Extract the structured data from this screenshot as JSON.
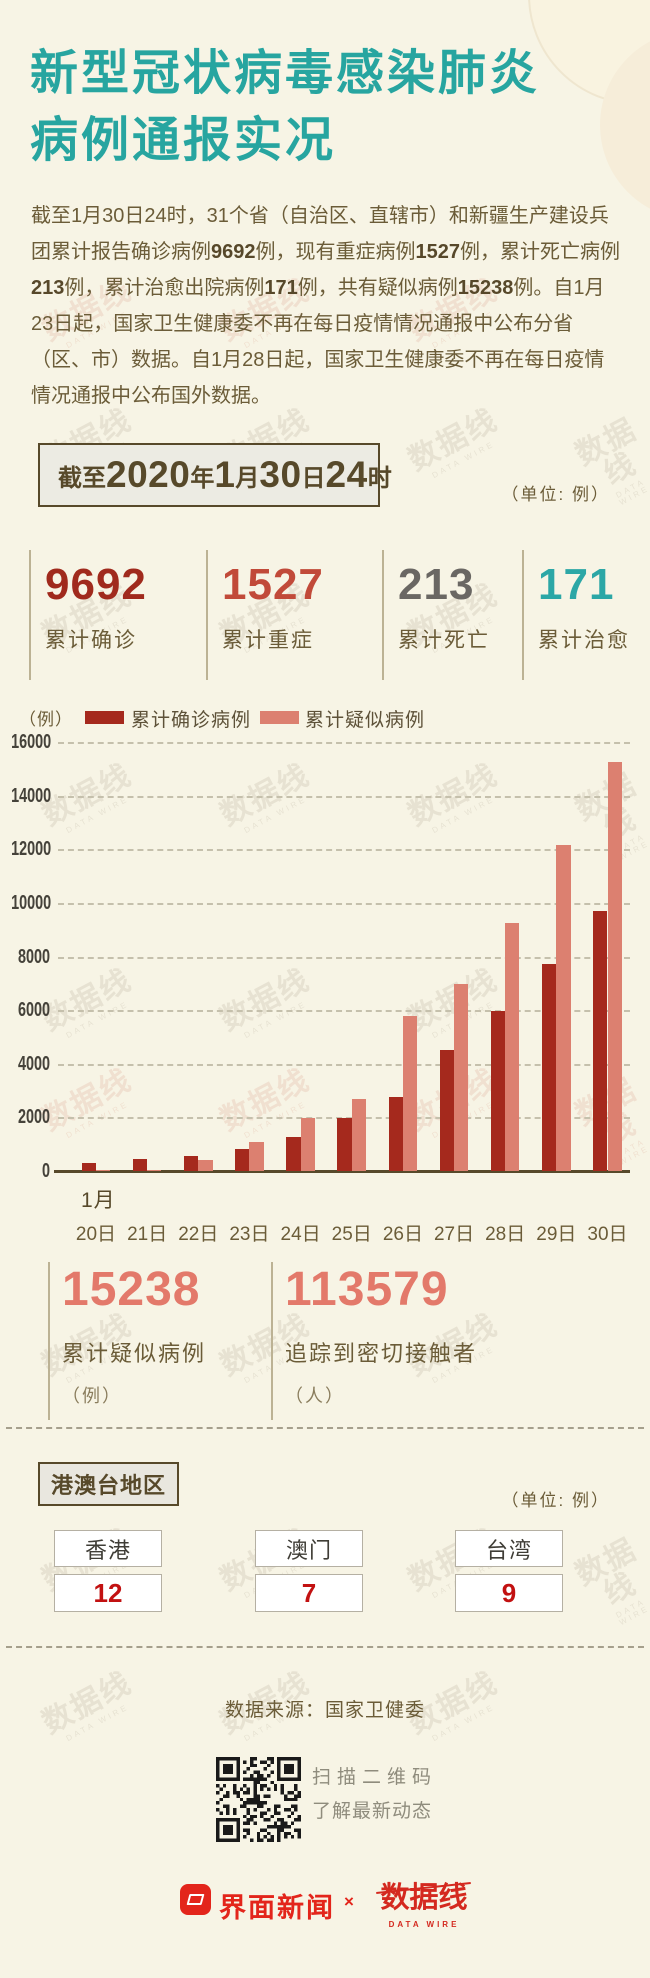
{
  "header": {
    "title_line1": "新型冠状病毒感染肺炎",
    "title_line2": "病例通报实况",
    "title_color": "#27a5a0"
  },
  "intro": {
    "segments": [
      {
        "text": "截至1月30日24时，31个省（自治区、直辖市）和新疆生产建设兵团累计报告确诊病例",
        "bold": false
      },
      {
        "text": "9692",
        "bold": true
      },
      {
        "text": "例，现有重症病例",
        "bold": false
      },
      {
        "text": "1527",
        "bold": true
      },
      {
        "text": "例，累计死亡病例",
        "bold": false
      },
      {
        "text": "213",
        "bold": true
      },
      {
        "text": "例，累计治愈出院病例",
        "bold": false
      },
      {
        "text": "171",
        "bold": true
      },
      {
        "text": "例，共有疑似病例",
        "bold": false
      },
      {
        "text": "15238",
        "bold": true
      },
      {
        "text": "例。自1月23日起，国家卫生健康委不再在每日疫情情况通报中公布分省（区、市）数据。自1月28日起，国家卫生健康委不再在每日疫情情况通报中公布国外数据。",
        "bold": false
      }
    ]
  },
  "banner": {
    "segments": [
      {
        "text": "截至",
        "size": "small"
      },
      {
        "text": "2020",
        "size": "big"
      },
      {
        "text": "年",
        "size": "small"
      },
      {
        "text": "1",
        "size": "big"
      },
      {
        "text": "月",
        "size": "small"
      },
      {
        "text": "30",
        "size": "big"
      },
      {
        "text": "日",
        "size": "small"
      },
      {
        "text": "24",
        "size": "big"
      },
      {
        "text": "时",
        "size": "small"
      }
    ]
  },
  "unit_note_top": "（单位: 例）",
  "summary_stats": [
    {
      "value": "9692",
      "label": "累计确诊",
      "color": "#a02a1d"
    },
    {
      "value": "1527",
      "label": "累计重症",
      "color": "#c14a39"
    },
    {
      "value": "213",
      "label": "累计死亡",
      "color": "#6a6763"
    },
    {
      "value": "171",
      "label": "累计治愈",
      "color": "#2ca7a6"
    }
  ],
  "chart_data": {
    "type": "bar",
    "unit_label": "（例）",
    "x_axis_prefix": "1月",
    "categories": [
      "20日",
      "21日",
      "22日",
      "23日",
      "24日",
      "25日",
      "26日",
      "27日",
      "28日",
      "29日",
      "30日"
    ],
    "series": [
      {
        "name": "累计确诊病例",
        "color": "#a5291d",
        "values": [
          291,
          440,
          571,
          830,
          1287,
          1975,
          2744,
          4515,
          5974,
          7711,
          9692
        ]
      },
      {
        "name": "累计疑似病例",
        "color": "#dc8070",
        "values": [
          54,
          37,
          393,
          1072,
          1965,
          2684,
          5794,
          6973,
          9239,
          12167,
          15238
        ]
      }
    ],
    "ylim": [
      0,
      16000
    ],
    "y_tick_step": 2000,
    "grid": "dashed-horizontal",
    "legend_position": "top-left"
  },
  "secondary_stats": [
    {
      "value": "15238",
      "label": "累计疑似病例",
      "unit": "（例）",
      "color": "#e3796a"
    },
    {
      "value": "113579",
      "label": "追踪到密切接触者",
      "unit": "（人）",
      "color": "#e3796a"
    }
  ],
  "hmt_section": {
    "title": "港澳台地区",
    "unit_note": "（单位: 例）",
    "value_color": "#c21111",
    "regions": [
      {
        "name": "香港",
        "value": "12"
      },
      {
        "name": "澳门",
        "value": "7"
      },
      {
        "name": "台湾",
        "value": "9"
      }
    ]
  },
  "footer": {
    "source": "数据来源：国家卫健委",
    "qr_caption_line1": "扫描二维码",
    "qr_caption_line2": "了解最新动态",
    "brand_left": "界面新闻",
    "cross": "×",
    "brand_right": "数据线",
    "brand_right_sub": "DATA WIRE",
    "brand_color": "#e3251b"
  },
  "watermark": {
    "text": "数据线",
    "sub": "DATA WIRE"
  }
}
